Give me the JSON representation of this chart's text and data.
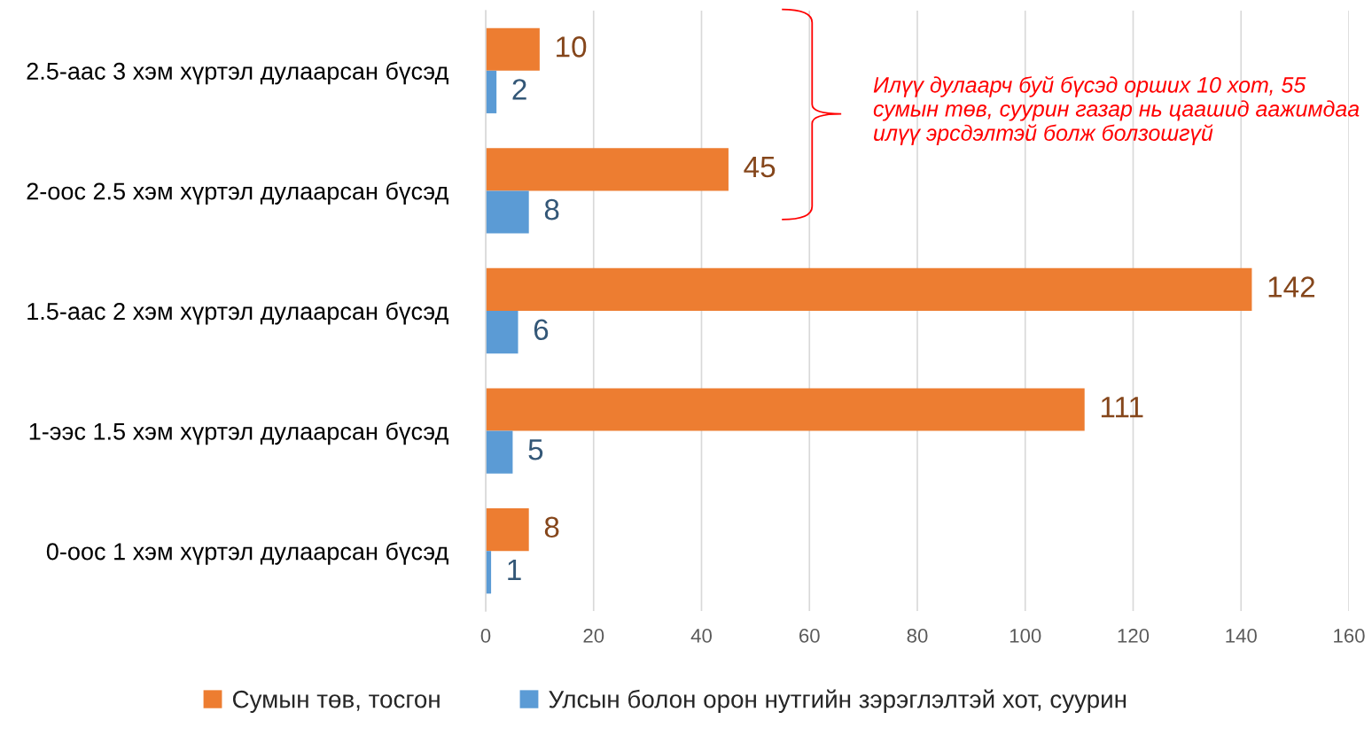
{
  "chart_data": {
    "type": "bar",
    "orientation": "horizontal",
    "categories": [
      "2.5-аас 3 хэм хүртэл дулаарсан бүсэд",
      "2-оос 2.5 хэм хүртэл дулаарсан бүсэд",
      "1.5-аас 2 хэм хүртэл дулаарсан бүсэд",
      "1-ээс 1.5 хэм хүртэл дулаарсан бүсэд",
      "0-оос 1 хэм хүртэл дулаарсан бүсэд"
    ],
    "series": [
      {
        "name": "Сумын төв, тосгон",
        "color": "#ed7d31",
        "values": [
          10,
          45,
          142,
          111,
          8
        ]
      },
      {
        "name": "Улсын болон орон нутгийн зэрэглэлтэй хот, суурин",
        "color": "#5b9bd5",
        "values": [
          2,
          8,
          6,
          5,
          1
        ]
      }
    ],
    "xlim": [
      0,
      160
    ],
    "xticks": [
      0,
      20,
      40,
      60,
      80,
      100,
      120,
      140,
      160
    ],
    "grid": "x",
    "legend": "bottom",
    "data_labels": true,
    "annotations": [
      "Илүү дулаарч буй бүсэд орших 10 хот, 55 сумын төв, суурин газар нь цаашид аажимдаа илүү эрсдэлтэй болж болзошгүй"
    ]
  }
}
